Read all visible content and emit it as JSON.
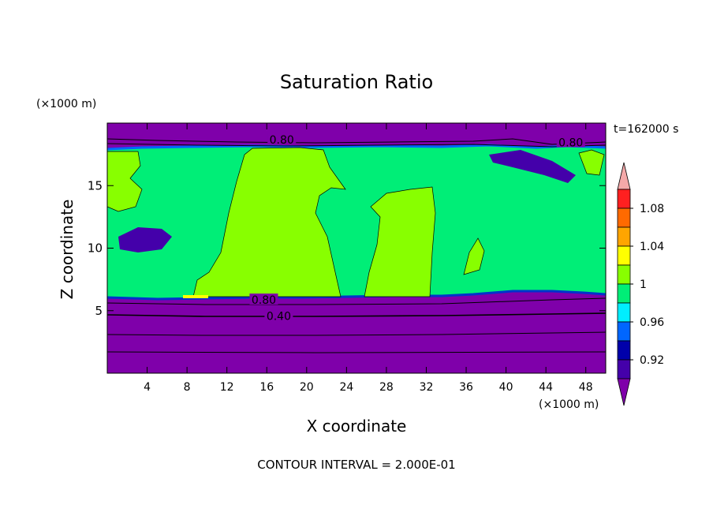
{
  "chart_data": {
    "type": "contour",
    "title": "Saturation Ratio",
    "time_label": "t=162000 s",
    "xlabel": "X coordinate",
    "ylabel": "Z coordinate",
    "x_unit": "(×1000 m)",
    "y_unit": "(×1000 m)",
    "footer": "CONTOUR INTERVAL = 2.000E-01",
    "x_range": [
      0,
      50
    ],
    "y_range": [
      0,
      20
    ],
    "x_ticks": [
      4,
      8,
      12,
      16,
      20,
      24,
      28,
      32,
      36,
      40,
      44,
      48
    ],
    "y_ticks": [
      5,
      10,
      15
    ],
    "contour_labels": [
      {
        "text": "0.80",
        "x": 17.5,
        "y": 18.6
      },
      {
        "text": "0.80",
        "x": 46.5,
        "y": 18.4
      },
      {
        "text": "0.80",
        "x": 15.7,
        "y": 5.8
      },
      {
        "text": "0.40",
        "x": 17.2,
        "y": 4.5
      }
    ],
    "colorbar": {
      "labels": [
        "1.08",
        "1.04",
        "1",
        "0.96",
        "0.92"
      ],
      "colors": [
        "#f4a9a9",
        "#ff2020",
        "#ff6a00",
        "#ffa500",
        "#ffff00",
        "#88ff00",
        "#00ee77",
        "#00eeff",
        "#0066ff",
        "#0000aa",
        "#4400aa",
        "#7f00aa"
      ]
    },
    "regions": {
      "upper_dry": {
        "level": "< 0.92",
        "z": [
          18,
          20
        ],
        "color": "#7f00aa"
      },
      "saturated": {
        "level": "0.96 - 1.00",
        "z": [
          6,
          18
        ],
        "color": "#00ee77"
      },
      "supersat": {
        "level": "1.00 - 1.02",
        "color": "#88ff00"
      },
      "lower_dry": {
        "level": "< 0.92",
        "z": [
          0,
          6
        ],
        "color": "#7f00aa"
      }
    }
  }
}
